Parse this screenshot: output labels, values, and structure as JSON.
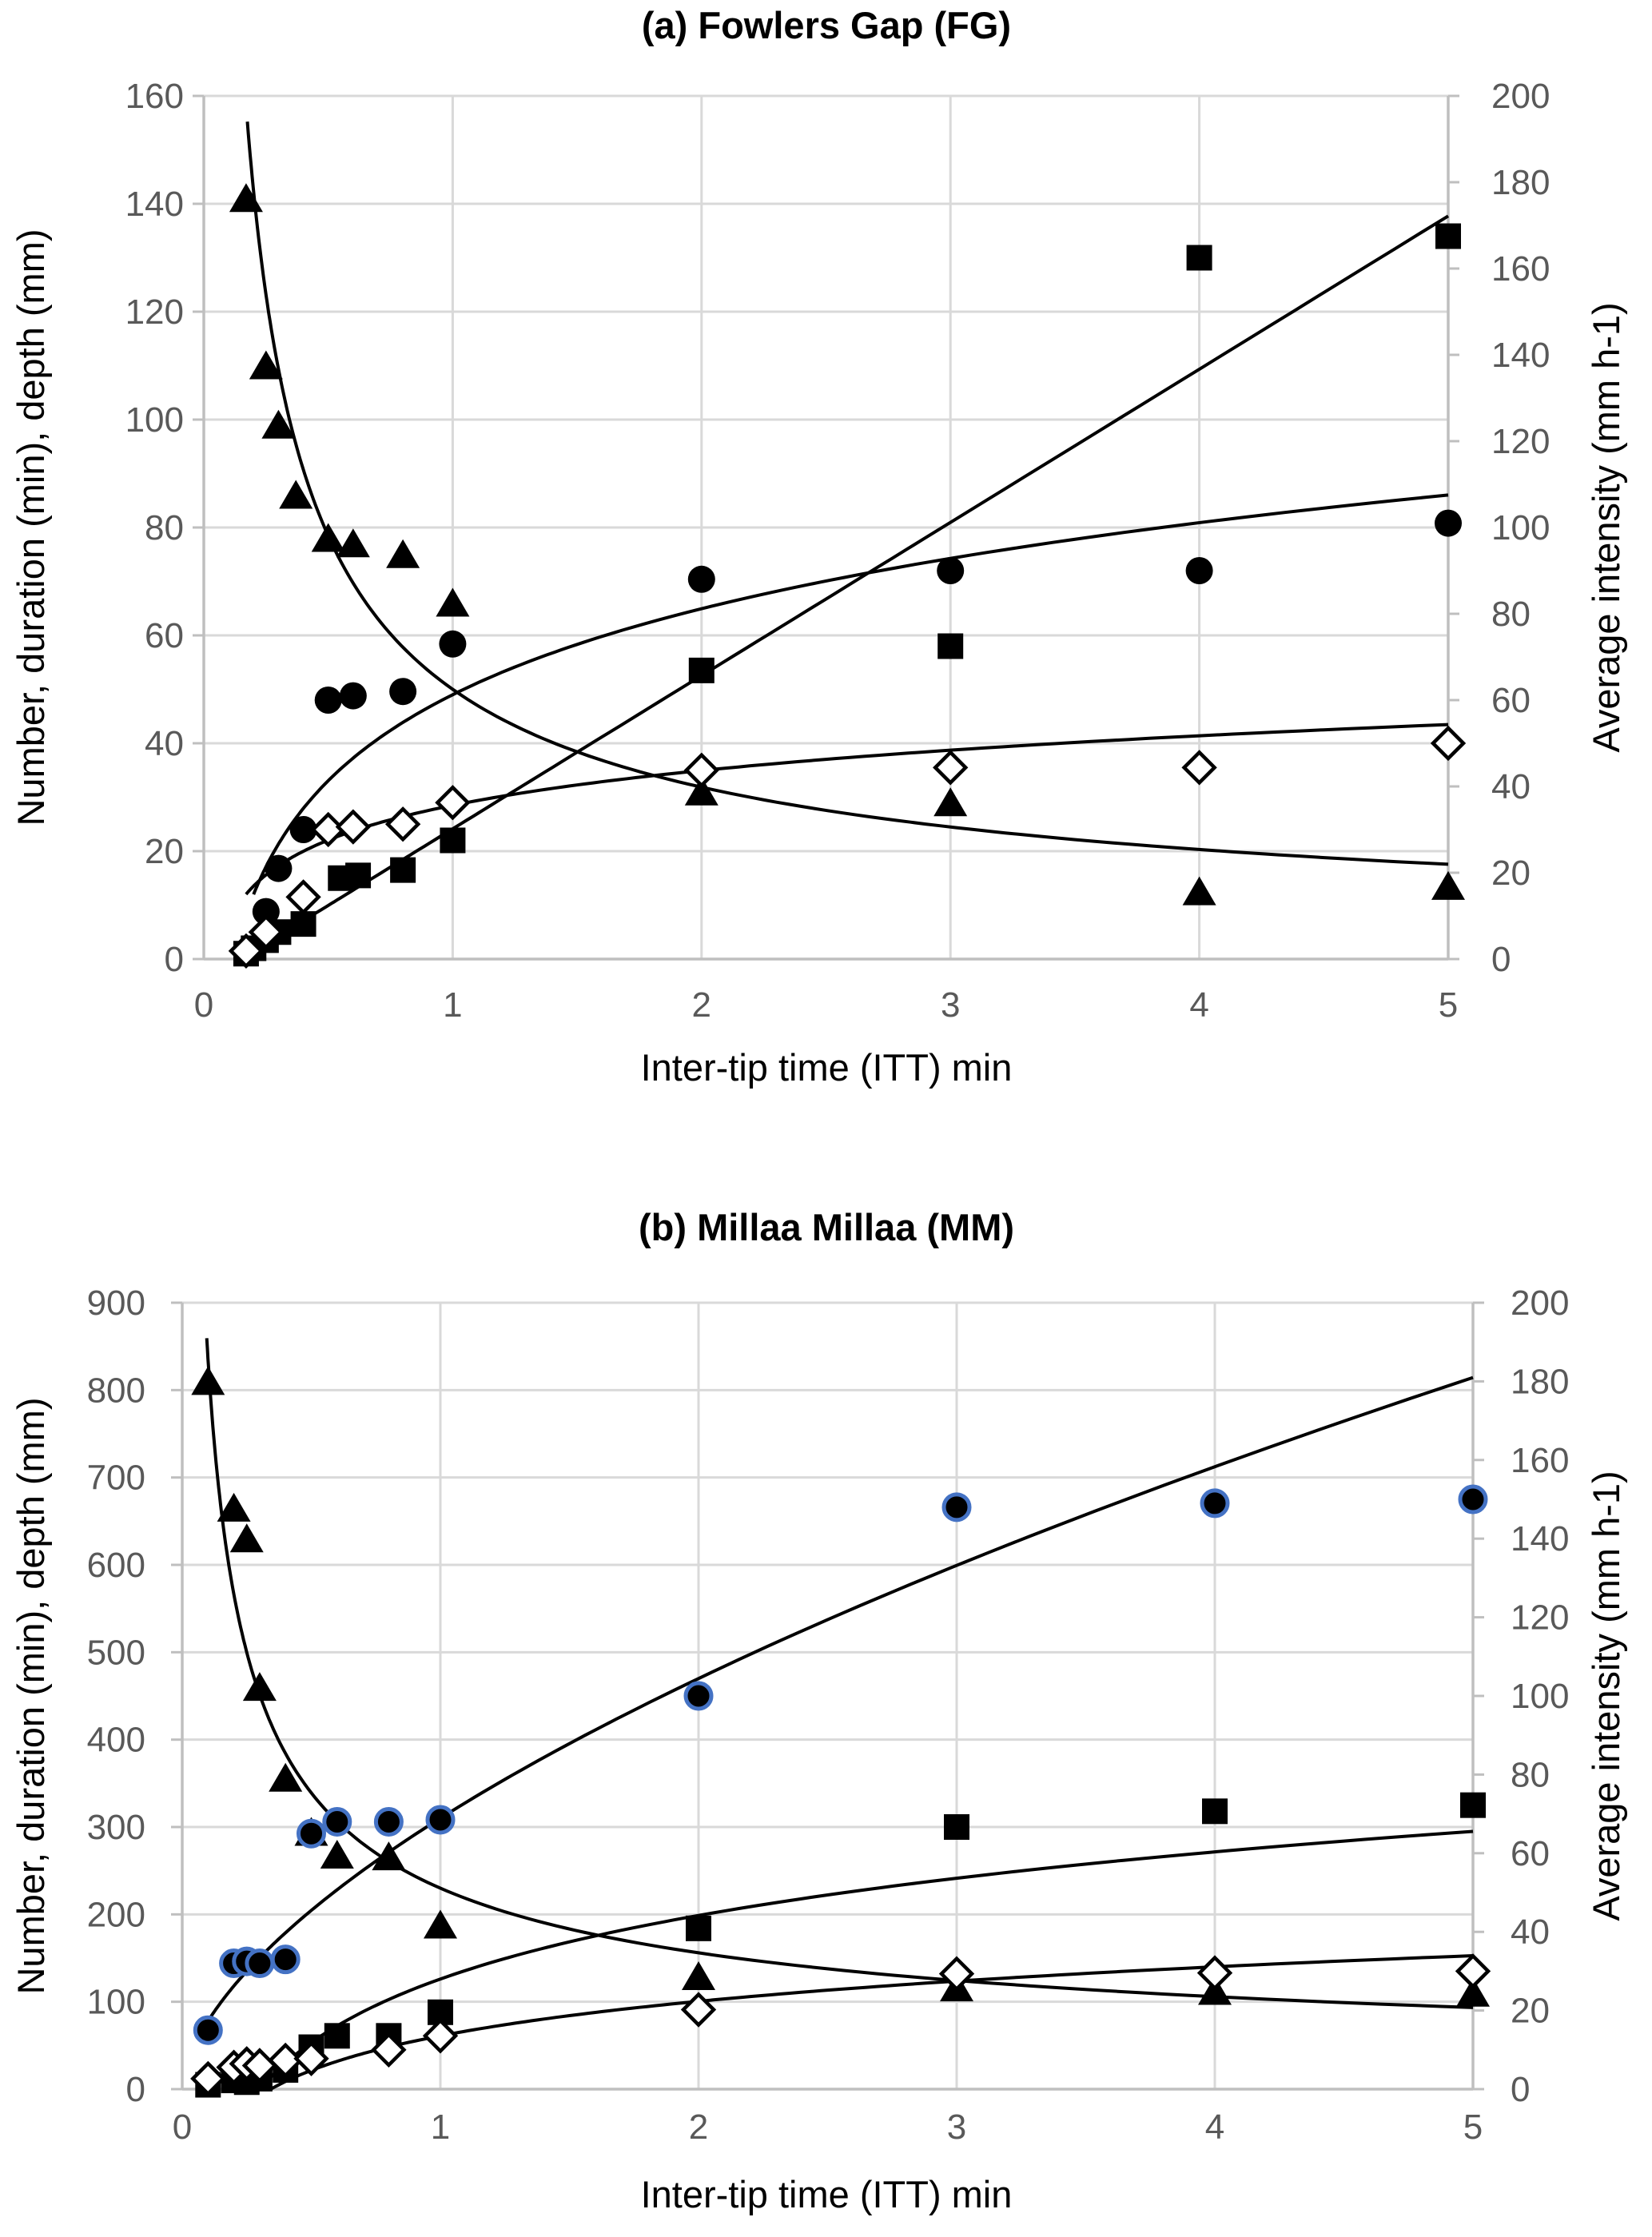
{
  "figure": {
    "background": "#ffffff",
    "colors": {
      "marker": "#000000",
      "circle_ring_panel_b": "#4472C4",
      "grid": "#D9D9D9",
      "axis_line": "#BFBFBF",
      "tick_text": "#595959",
      "title_text": "#404040",
      "fit_line": "#000000"
    }
  },
  "chart_data": [
    {
      "type": "scatter",
      "panel": "a",
      "title": "(a) Fowlers Gap (FG)",
      "xlabel": "Inter-tip time (ITT) min",
      "ylabel_left": "Number, duration (min), depth (mm)",
      "ylabel_right": "Average intensity (mm h-1)",
      "xlim": [
        0,
        5
      ],
      "ylim_left": [
        0,
        160
      ],
      "ylim_right": [
        0,
        200
      ],
      "x_ticks": [
        0,
        1,
        2,
        3,
        4,
        5
      ],
      "left_ticks": [
        0,
        20,
        40,
        60,
        80,
        100,
        120,
        140,
        160
      ],
      "right_ticks": [
        0,
        20,
        40,
        60,
        80,
        100,
        120,
        140,
        160,
        180,
        200
      ],
      "grid": true,
      "legend": "none",
      "series": [
        {
          "name": "number-of-events",
          "marker": "filled-triangle",
          "axis": "left",
          "points": [
            [
              0.17,
              141
            ],
            [
              0.25,
              110
            ],
            [
              0.3,
              99
            ],
            [
              0.37,
              86
            ],
            [
              0.5,
              78
            ],
            [
              0.6,
              77
            ],
            [
              0.8,
              75
            ],
            [
              1,
              66
            ],
            [
              2,
              31
            ],
            [
              3,
              29
            ],
            [
              4,
              12.5
            ],
            [
              5,
              13.5
            ]
          ]
        },
        {
          "name": "average-intensity",
          "marker": "filled-circle",
          "axis": "right",
          "points": [
            [
              0.25,
              11
            ],
            [
              0.3,
              21
            ],
            [
              0.4,
              30
            ],
            [
              0.5,
              60
            ],
            [
              0.6,
              61
            ],
            [
              0.8,
              62
            ],
            [
              1,
              73
            ],
            [
              2,
              88
            ],
            [
              3,
              90
            ],
            [
              4,
              90
            ],
            [
              5,
              101
            ]
          ]
        },
        {
          "name": "duration",
          "marker": "filled-square",
          "axis": "left",
          "points": [
            [
              0.17,
              1
            ],
            [
              0.2,
              2
            ],
            [
              0.25,
              3.5
            ],
            [
              0.3,
              5
            ],
            [
              0.4,
              6.5
            ],
            [
              0.55,
              15
            ],
            [
              0.62,
              15.5
            ],
            [
              0.8,
              16.5
            ],
            [
              1,
              22
            ],
            [
              2,
              53.5
            ],
            [
              3,
              58
            ],
            [
              4,
              130
            ],
            [
              5,
              134
            ]
          ]
        },
        {
          "name": "depth",
          "marker": "open-diamond",
          "axis": "left",
          "points": [
            [
              0.17,
              1.5
            ],
            [
              0.25,
              5
            ],
            [
              0.4,
              11.5
            ],
            [
              0.5,
              24
            ],
            [
              0.6,
              24.5
            ],
            [
              0.8,
              25
            ],
            [
              1,
              29
            ],
            [
              2,
              35
            ],
            [
              3,
              35.5
            ],
            [
              4,
              35.5
            ],
            [
              5,
              40
            ]
          ]
        }
      ],
      "fits": [
        {
          "series": "number-of-events",
          "axis": "left",
          "type": "power",
          "a": 50,
          "b": -0.65,
          "domain": [
            0.175,
            5
          ]
        },
        {
          "series": "average-intensity",
          "axis": "right",
          "type": "log",
          "a": 61.25,
          "b": 28.75,
          "domain": [
            0.2,
            5
          ]
        },
        {
          "series": "duration",
          "axis": "left",
          "type": "linear",
          "a": -4.26,
          "b": 28.4,
          "domain": [
            0.15,
            5
          ]
        },
        {
          "series": "depth",
          "axis": "left",
          "type": "log",
          "a": 28.5,
          "b": 9.3,
          "domain": [
            0.17,
            5
          ]
        }
      ]
    },
    {
      "type": "scatter",
      "panel": "b",
      "title": "(b) Millaa Millaa (MM)",
      "xlabel": "Inter-tip time (ITT) min",
      "ylabel_left": "Number, duration (min), depth (mm)",
      "ylabel_right": "Average intensity (mm h-1)",
      "xlim": [
        0,
        5
      ],
      "ylim_left": [
        0,
        900
      ],
      "ylim_right": [
        0,
        200
      ],
      "x_ticks": [
        0,
        1,
        2,
        3,
        4,
        5
      ],
      "left_ticks": [
        0,
        100,
        200,
        300,
        400,
        500,
        600,
        700,
        800,
        900
      ],
      "right_ticks": [
        0,
        20,
        40,
        60,
        80,
        100,
        120,
        140,
        160,
        180,
        200
      ],
      "grid": true,
      "legend": "none",
      "series": [
        {
          "name": "number-of-events",
          "marker": "filled-triangle",
          "axis": "left",
          "points": [
            [
              0.1,
              810
            ],
            [
              0.2,
              665
            ],
            [
              0.25,
              630
            ],
            [
              0.3,
              460
            ],
            [
              0.4,
              356
            ],
            [
              0.5,
              294
            ],
            [
              0.6,
              268
            ],
            [
              0.8,
              266
            ],
            [
              1,
              188
            ],
            [
              2,
              129
            ],
            [
              3,
              116
            ],
            [
              4,
              112
            ],
            [
              5,
              110
            ]
          ]
        },
        {
          "name": "average-intensity",
          "marker": "filled-circle-blue-ring",
          "axis": "right",
          "points": [
            [
              0.1,
              15
            ],
            [
              0.2,
              32
            ],
            [
              0.25,
              32.5
            ],
            [
              0.3,
              32
            ],
            [
              0.4,
              33
            ],
            [
              0.5,
              65
            ],
            [
              0.6,
              68
            ],
            [
              0.8,
              68
            ],
            [
              1,
              68.5
            ],
            [
              2,
              100
            ],
            [
              3,
              148
            ],
            [
              4,
              149
            ],
            [
              5,
              150
            ]
          ]
        },
        {
          "name": "duration",
          "marker": "filled-square",
          "axis": "left",
          "points": [
            [
              0.1,
              5
            ],
            [
              0.2,
              10
            ],
            [
              0.25,
              8
            ],
            [
              0.3,
              12
            ],
            [
              0.4,
              22
            ],
            [
              0.5,
              48
            ],
            [
              0.6,
              61
            ],
            [
              0.8,
              61
            ],
            [
              1,
              88
            ],
            [
              2,
              184
            ],
            [
              3,
              300
            ],
            [
              4,
              318
            ],
            [
              5,
              325
            ]
          ]
        },
        {
          "name": "depth",
          "marker": "open-diamond",
          "axis": "left",
          "points": [
            [
              0.1,
              12
            ],
            [
              0.2,
              25
            ],
            [
              0.25,
              29
            ],
            [
              0.3,
              27
            ],
            [
              0.4,
              33
            ],
            [
              0.5,
              35
            ],
            [
              0.8,
              45
            ],
            [
              1,
              61
            ],
            [
              2,
              91
            ],
            [
              3,
              132
            ],
            [
              4,
              133
            ],
            [
              5,
              135
            ]
          ]
        }
      ],
      "fits": [
        {
          "series": "number-of-events",
          "axis": "left",
          "type": "power",
          "a": 230,
          "b": -0.56,
          "domain": [
            0.095,
            5
          ]
        },
        {
          "series": "average-intensity",
          "axis": "right",
          "type": "power",
          "a": 68.9,
          "b": 0.6,
          "domain": [
            0.095,
            5
          ]
        },
        {
          "series": "duration",
          "axis": "left",
          "type": "log",
          "a": 126,
          "b": 105,
          "domain": [
            0.302,
            5
          ]
        },
        {
          "series": "depth",
          "axis": "left",
          "type": "log",
          "a": 61,
          "b": 57,
          "domain": [
            0.343,
            5
          ]
        }
      ]
    }
  ]
}
